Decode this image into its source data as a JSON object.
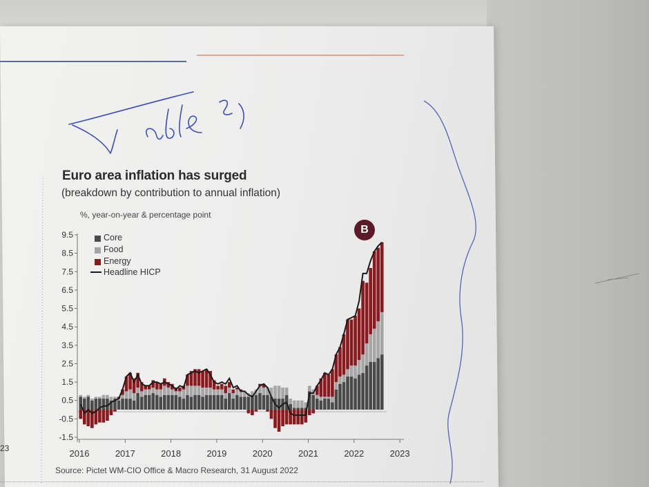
{
  "handwriting": {
    "text": "Table 2)"
  },
  "margin_number": "23",
  "badge_label": "B",
  "source": "Source: Pictet WM-CIO Office & Macro Research, 31 August 2022",
  "colors": {
    "core": "#4a4a4a",
    "food": "#a6a6a6",
    "energy": "#8b1a1f",
    "headline": "#1a1a1a",
    "badge": "#5a1a27"
  },
  "chart_data": {
    "type": "bar",
    "stacked": true,
    "title": "Euro area inflation has surged",
    "subtitle": "(breakdown by contribution to annual inflation)",
    "ylabel": "%, year-on-year & percentage point",
    "ylim": [
      -1.5,
      9.5
    ],
    "yticks": [
      "9.5",
      "8.5",
      "7.5",
      "6.5",
      "5.5",
      "4.5",
      "3.5",
      "2.5",
      "1.5",
      "0.5",
      "-0.5",
      "-1.5"
    ],
    "xtick_labels": [
      "2016",
      "2017",
      "2018",
      "2019",
      "2020",
      "2021",
      "2022",
      "2023"
    ],
    "legend": {
      "position": "top-left",
      "items": [
        "Core",
        "Food",
        "Energy",
        "Headline HICP"
      ]
    },
    "months": [
      "2016-01",
      "2016-02",
      "2016-03",
      "2016-04",
      "2016-05",
      "2016-06",
      "2016-07",
      "2016-08",
      "2016-09",
      "2016-10",
      "2016-11",
      "2016-12",
      "2017-01",
      "2017-02",
      "2017-03",
      "2017-04",
      "2017-05",
      "2017-06",
      "2017-07",
      "2017-08",
      "2017-09",
      "2017-10",
      "2017-11",
      "2017-12",
      "2018-01",
      "2018-02",
      "2018-03",
      "2018-04",
      "2018-05",
      "2018-06",
      "2018-07",
      "2018-08",
      "2018-09",
      "2018-10",
      "2018-11",
      "2018-12",
      "2019-01",
      "2019-02",
      "2019-03",
      "2019-04",
      "2019-05",
      "2019-06",
      "2019-07",
      "2019-08",
      "2019-09",
      "2019-10",
      "2019-11",
      "2019-12",
      "2020-01",
      "2020-02",
      "2020-03",
      "2020-04",
      "2020-05",
      "2020-06",
      "2020-07",
      "2020-08",
      "2020-09",
      "2020-10",
      "2020-11",
      "2020-12",
      "2021-01",
      "2021-02",
      "2021-03",
      "2021-04",
      "2021-05",
      "2021-06",
      "2021-07",
      "2021-08",
      "2021-09",
      "2021-10",
      "2021-11",
      "2021-12",
      "2022-01",
      "2022-02",
      "2022-03",
      "2022-04",
      "2022-05",
      "2022-06",
      "2022-07",
      "2022-08"
    ],
    "series": [
      {
        "name": "Core",
        "values": [
          0.7,
          0.6,
          0.7,
          0.5,
          0.6,
          0.6,
          0.6,
          0.6,
          0.5,
          0.6,
          0.5,
          0.6,
          0.6,
          0.6,
          0.5,
          0.9,
          0.7,
          0.8,
          0.8,
          0.9,
          0.8,
          0.7,
          0.8,
          0.8,
          0.8,
          0.8,
          0.7,
          0.6,
          0.8,
          0.7,
          0.8,
          0.8,
          0.7,
          0.8,
          0.8,
          0.8,
          0.8,
          0.8,
          0.6,
          0.9,
          0.6,
          0.8,
          0.7,
          0.7,
          0.7,
          0.8,
          0.8,
          0.9,
          0.8,
          0.8,
          0.7,
          0.6,
          0.6,
          0.6,
          0.8,
          0.3,
          0.1,
          0.1,
          0.1,
          0.1,
          1.0,
          0.8,
          0.6,
          0.5,
          0.6,
          0.6,
          0.4,
          1.1,
          1.4,
          1.5,
          1.8,
          1.8,
          1.7,
          1.9,
          2.0,
          2.4,
          2.6,
          2.6,
          2.8,
          3.0
        ]
      },
      {
        "name": "Food",
        "values": [
          0.1,
          0.1,
          0.1,
          0.1,
          0.1,
          0.1,
          0.2,
          0.2,
          0.2,
          0.1,
          0.1,
          0.2,
          0.4,
          0.5,
          0.4,
          0.3,
          0.3,
          0.3,
          0.3,
          0.3,
          0.3,
          0.4,
          0.5,
          0.4,
          0.3,
          0.2,
          0.3,
          0.5,
          0.5,
          0.6,
          0.5,
          0.5,
          0.5,
          0.4,
          0.4,
          0.3,
          0.3,
          0.3,
          0.3,
          0.3,
          0.3,
          0.3,
          0.3,
          0.3,
          0.2,
          0.2,
          0.3,
          0.4,
          0.4,
          0.4,
          0.5,
          0.7,
          0.7,
          0.6,
          0.4,
          0.3,
          0.4,
          0.4,
          0.4,
          0.3,
          0.3,
          0.3,
          0.2,
          0.2,
          0.1,
          0.1,
          0.3,
          0.4,
          0.4,
          0.4,
          0.4,
          0.6,
          0.7,
          0.8,
          1.0,
          1.2,
          1.5,
          1.8,
          2.0,
          2.3
        ]
      },
      {
        "name": "Energy",
        "values": [
          -0.5,
          -0.8,
          -0.9,
          -1.0,
          -0.8,
          -0.7,
          -0.7,
          -0.6,
          -0.3,
          -0.1,
          0.1,
          0.3,
          0.8,
          0.9,
          0.8,
          0.8,
          0.5,
          0.2,
          0.2,
          0.4,
          0.4,
          0.3,
          0.4,
          0.3,
          0.3,
          0.2,
          0.2,
          0.2,
          0.6,
          0.8,
          0.9,
          0.9,
          0.9,
          1.0,
          0.9,
          0.5,
          0.2,
          0.3,
          0.4,
          0.3,
          0.2,
          0.1,
          0.1,
          0.0,
          -0.2,
          -0.3,
          -0.1,
          0.1,
          0.2,
          -0.1,
          -0.5,
          -1.0,
          -1.2,
          -0.9,
          -0.8,
          -0.8,
          -0.8,
          -0.8,
          -0.8,
          -0.7,
          -0.3,
          -0.2,
          0.5,
          1.0,
          1.3,
          1.2,
          1.5,
          1.5,
          1.6,
          2.2,
          2.7,
          2.5,
          2.7,
          2.8,
          4.0,
          3.3,
          3.6,
          4.2,
          4.0,
          3.8
        ]
      }
    ],
    "headline": [
      0.3,
      -0.2,
      0.0,
      -0.2,
      -0.1,
      0.1,
      0.2,
      0.2,
      0.4,
      0.5,
      0.6,
      1.1,
      1.8,
      2.0,
      1.5,
      1.9,
      1.4,
      1.3,
      1.3,
      1.5,
      1.5,
      1.4,
      1.5,
      1.4,
      1.3,
      1.1,
      1.3,
      1.2,
      1.9,
      2.0,
      2.1,
      2.0,
      2.1,
      2.2,
      1.9,
      1.5,
      1.4,
      1.5,
      1.4,
      1.7,
      1.2,
      1.3,
      1.0,
      1.0,
      0.8,
      0.7,
      1.0,
      1.3,
      1.4,
      1.2,
      0.7,
      0.3,
      0.1,
      0.3,
      0.4,
      -0.2,
      -0.3,
      -0.3,
      -0.3,
      -0.3,
      0.9,
      0.9,
      1.3,
      1.6,
      2.0,
      1.9,
      2.2,
      3.0,
      3.4,
      4.1,
      4.9,
      5.0,
      5.1,
      5.9,
      7.4,
      7.4,
      8.1,
      8.6,
      8.9,
      9.1
    ]
  }
}
